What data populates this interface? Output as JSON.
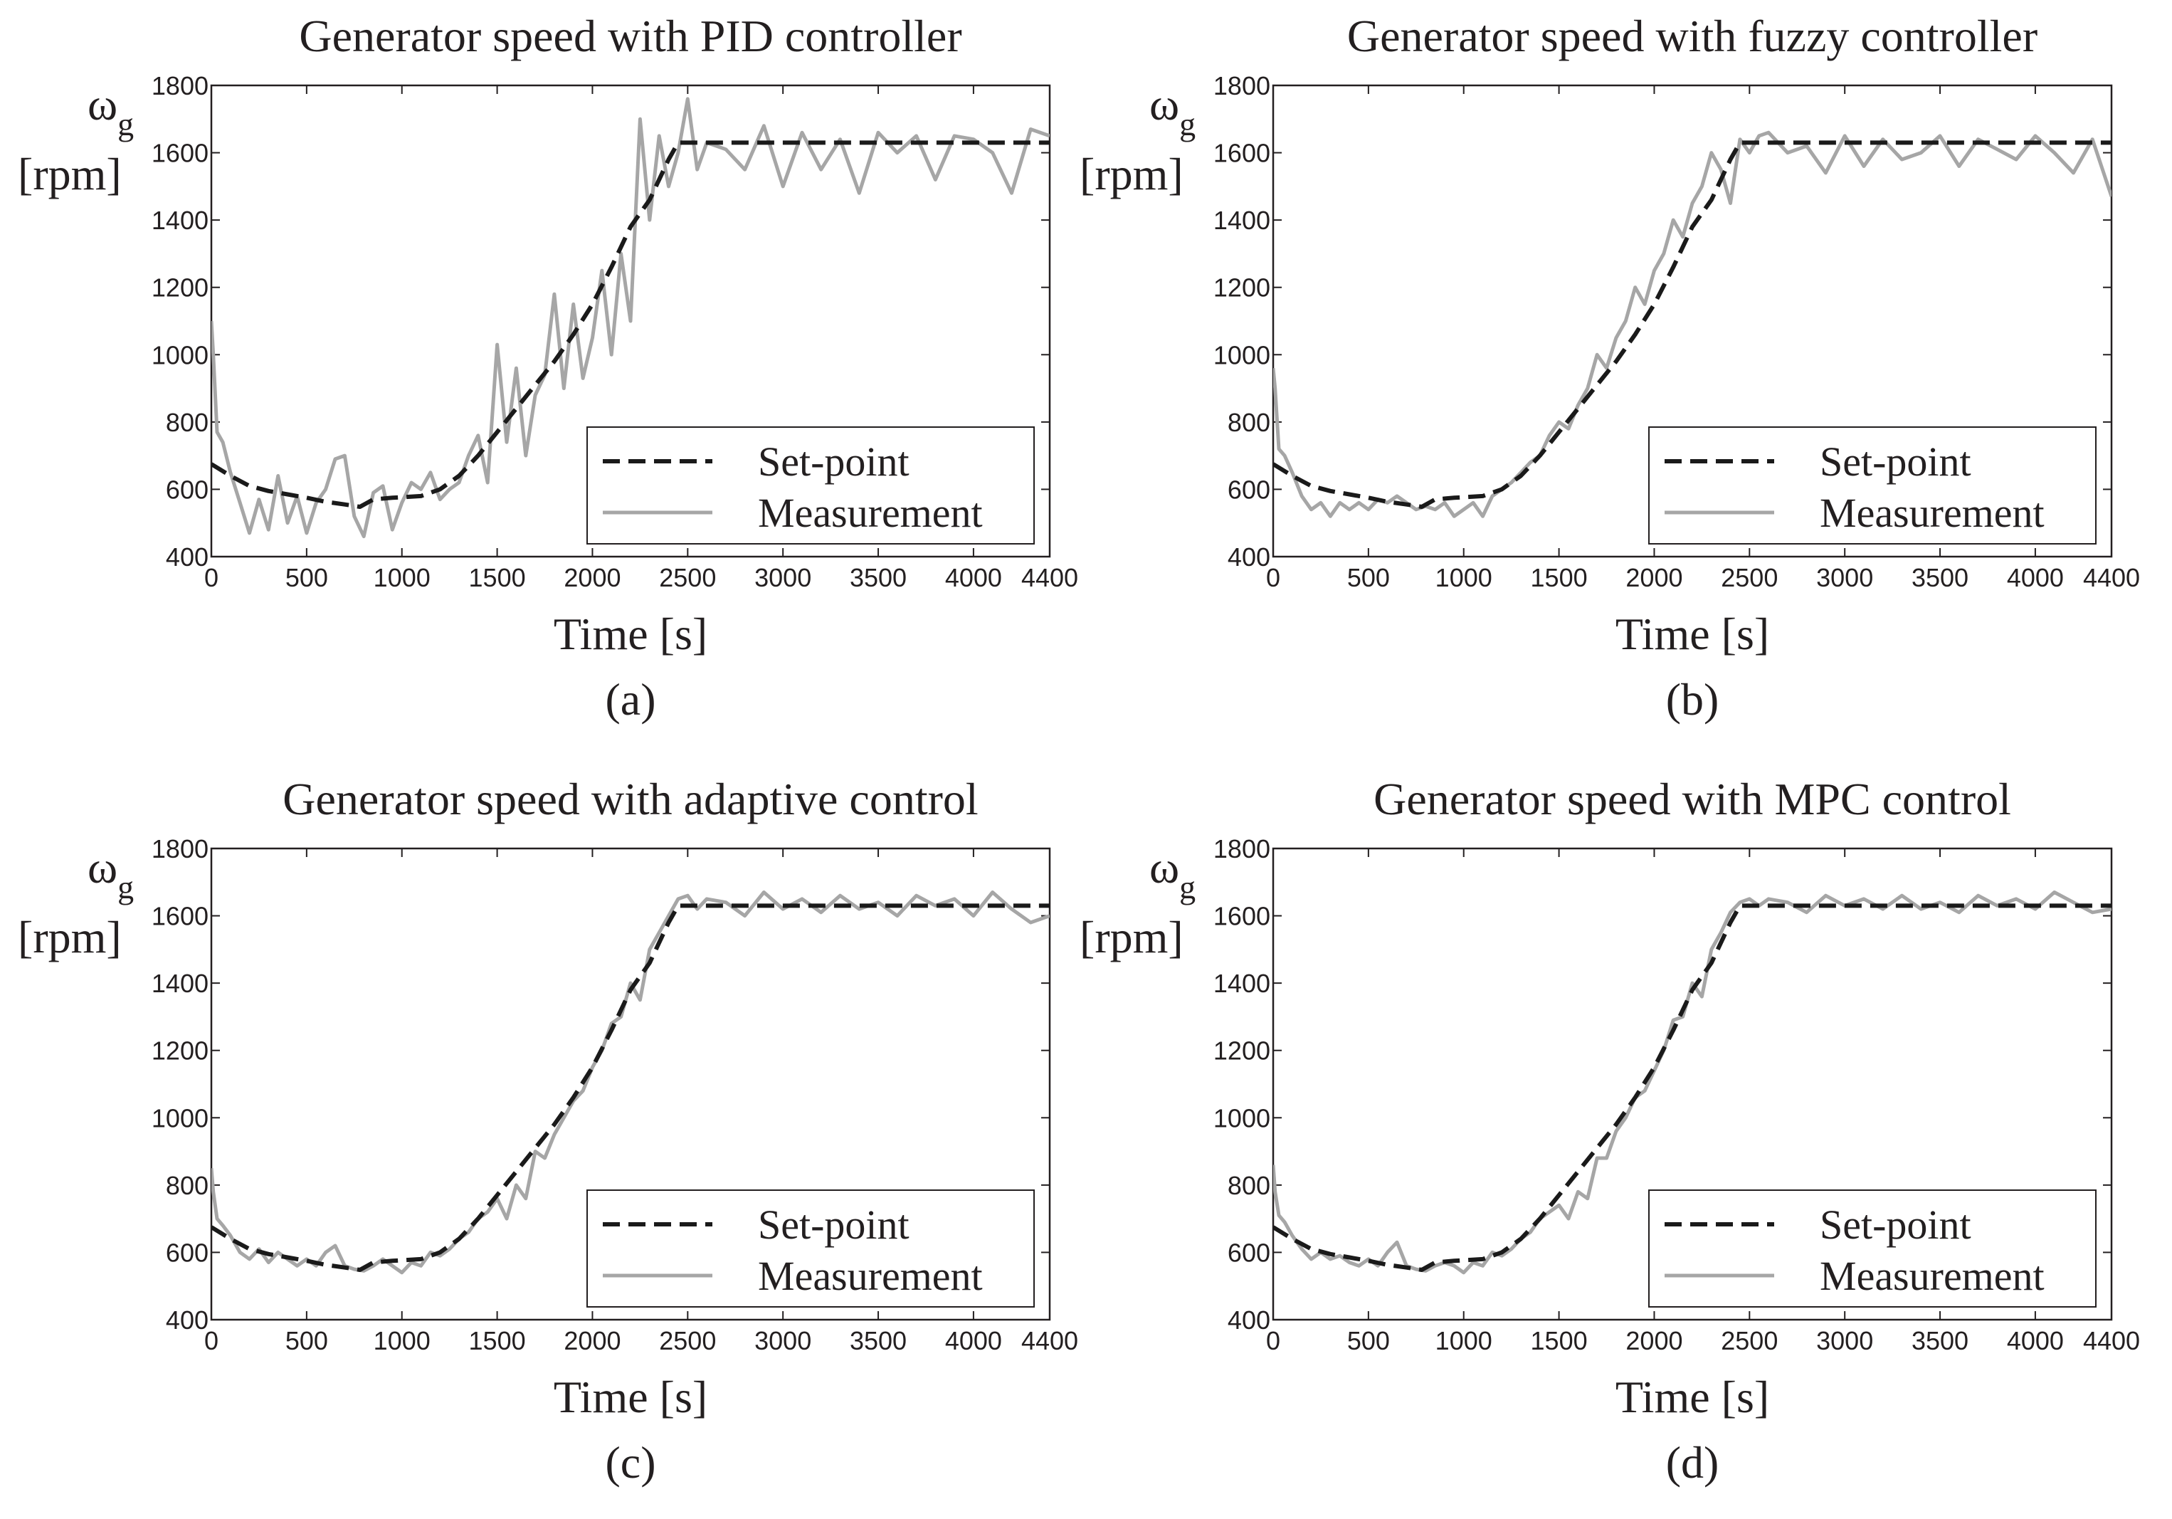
{
  "figure": {
    "style": {
      "setpoint_color": "#1a1a1a",
      "measurement_color": "#a6a6a6",
      "axis_color": "#231f20"
    },
    "shared": {
      "x_label": "Time [s]",
      "y_label_symbol": "ω",
      "y_label_subscript": "g",
      "y_label_unit": "[rpm]",
      "x_ticks": [
        "0",
        "500",
        "1000",
        "1500",
        "2000",
        "2500",
        "3000",
        "3500",
        "4000",
        "4400"
      ],
      "y_ticks": [
        "400",
        "600",
        "800",
        "1000",
        "1200",
        "1400",
        "1600",
        "1800"
      ],
      "legend_setpoint": "Set-point",
      "legend_measurement": "Measurement"
    }
  },
  "chart_data": [
    {
      "type": "line",
      "panel": "a",
      "caption": "(a)",
      "title": "Generator speed with PID controller",
      "xlabel": "Time [s]",
      "ylabel": "ωg [rpm]",
      "xlim": [
        0,
        4400
      ],
      "ylim": [
        400,
        1800
      ],
      "legend": [
        "Set-point",
        "Measurement"
      ],
      "series": [
        {
          "name": "Set-point",
          "style": "dashed",
          "x": [
            0,
            100,
            200,
            300,
            400,
            500,
            600,
            700,
            780,
            850,
            950,
            1100,
            1200,
            1300,
            1400,
            1500,
            1600,
            1700,
            1800,
            1900,
            2000,
            2100,
            2200,
            2300,
            2400,
            2450,
            4400
          ],
          "y": [
            675,
            640,
            610,
            595,
            585,
            575,
            563,
            555,
            548,
            570,
            575,
            580,
            600,
            640,
            700,
            770,
            840,
            910,
            980,
            1060,
            1150,
            1260,
            1380,
            1460,
            1580,
            1630,
            1630
          ]
        },
        {
          "name": "Measurement",
          "style": "solid",
          "x": [
            0,
            10,
            30,
            60,
            100,
            150,
            200,
            250,
            300,
            350,
            400,
            450,
            500,
            550,
            600,
            650,
            700,
            750,
            800,
            850,
            900,
            950,
            1000,
            1050,
            1100,
            1150,
            1200,
            1250,
            1300,
            1350,
            1400,
            1450,
            1500,
            1550,
            1600,
            1650,
            1700,
            1750,
            1800,
            1850,
            1900,
            1950,
            2000,
            2050,
            2100,
            2150,
            2200,
            2250,
            2300,
            2350,
            2400,
            2450,
            2500,
            2550,
            2600,
            2700,
            2800,
            2900,
            3000,
            3100,
            3200,
            3300,
            3400,
            3500,
            3600,
            3700,
            3800,
            3900,
            4000,
            4100,
            4200,
            4300,
            4400
          ],
          "y": [
            1100,
            1000,
            770,
            740,
            650,
            560,
            470,
            570,
            480,
            640,
            500,
            580,
            470,
            560,
            600,
            690,
            700,
            520,
            460,
            590,
            610,
            480,
            560,
            620,
            600,
            650,
            570,
            600,
            620,
            700,
            760,
            620,
            1030,
            740,
            960,
            700,
            880,
            940,
            1180,
            900,
            1150,
            930,
            1050,
            1250,
            1000,
            1300,
            1100,
            1700,
            1400,
            1650,
            1500,
            1600,
            1760,
            1550,
            1630,
            1610,
            1550,
            1680,
            1500,
            1660,
            1550,
            1640,
            1480,
            1660,
            1600,
            1650,
            1520,
            1650,
            1640,
            1600,
            1480,
            1670,
            1650
          ]
        }
      ]
    },
    {
      "type": "line",
      "panel": "b",
      "caption": "(b)",
      "title": "Generator speed with fuzzy controller",
      "xlabel": "Time [s]",
      "ylabel": "ωg [rpm]",
      "xlim": [
        0,
        4400
      ],
      "ylim": [
        400,
        1800
      ],
      "legend": [
        "Set-point",
        "Measurement"
      ],
      "series": [
        {
          "name": "Set-point",
          "style": "dashed",
          "x": [
            0,
            100,
            200,
            300,
            400,
            500,
            600,
            700,
            780,
            850,
            950,
            1100,
            1200,
            1300,
            1400,
            1500,
            1600,
            1700,
            1800,
            1900,
            2000,
            2100,
            2200,
            2300,
            2400,
            2450,
            4400
          ],
          "y": [
            675,
            640,
            610,
            595,
            585,
            575,
            563,
            555,
            548,
            570,
            575,
            580,
            600,
            640,
            700,
            770,
            840,
            910,
            980,
            1060,
            1150,
            1260,
            1380,
            1460,
            1580,
            1630,
            1630
          ]
        },
        {
          "name": "Measurement",
          "style": "solid",
          "x": [
            0,
            10,
            30,
            60,
            100,
            150,
            200,
            250,
            300,
            350,
            400,
            450,
            500,
            550,
            600,
            650,
            700,
            750,
            800,
            850,
            900,
            950,
            1000,
            1050,
            1100,
            1150,
            1200,
            1250,
            1300,
            1350,
            1400,
            1450,
            1500,
            1550,
            1600,
            1650,
            1700,
            1750,
            1800,
            1850,
            1900,
            1950,
            2000,
            2050,
            2100,
            2150,
            2200,
            2250,
            2300,
            2350,
            2400,
            2450,
            2500,
            2550,
            2600,
            2700,
            2800,
            2900,
            3000,
            3100,
            3200,
            3300,
            3400,
            3500,
            3600,
            3700,
            3800,
            3900,
            4000,
            4100,
            4200,
            4300,
            4400
          ],
          "y": [
            960,
            900,
            720,
            700,
            650,
            580,
            540,
            560,
            520,
            560,
            540,
            560,
            540,
            570,
            560,
            580,
            560,
            540,
            550,
            540,
            560,
            520,
            540,
            560,
            520,
            580,
            600,
            620,
            650,
            680,
            700,
            760,
            800,
            780,
            850,
            900,
            1000,
            960,
            1050,
            1100,
            1200,
            1150,
            1250,
            1300,
            1400,
            1350,
            1450,
            1500,
            1600,
            1550,
            1450,
            1640,
            1600,
            1650,
            1660,
            1600,
            1620,
            1540,
            1650,
            1560,
            1640,
            1580,
            1600,
            1650,
            1560,
            1640,
            1610,
            1580,
            1650,
            1600,
            1540,
            1640,
            1470
          ]
        }
      ]
    },
    {
      "type": "line",
      "panel": "c",
      "caption": "(c)",
      "title": "Generator speed with adaptive control",
      "xlabel": "Time [s]",
      "ylabel": "ωg [rpm]",
      "xlim": [
        0,
        4400
      ],
      "ylim": [
        400,
        1800
      ],
      "legend": [
        "Set-point",
        "Measurement"
      ],
      "series": [
        {
          "name": "Set-point",
          "style": "dashed",
          "x": [
            0,
            100,
            200,
            300,
            400,
            500,
            600,
            700,
            780,
            850,
            950,
            1100,
            1200,
            1300,
            1400,
            1500,
            1600,
            1700,
            1800,
            1900,
            2000,
            2100,
            2200,
            2300,
            2400,
            2450,
            4400
          ],
          "y": [
            675,
            640,
            610,
            595,
            585,
            575,
            563,
            555,
            548,
            570,
            575,
            580,
            600,
            640,
            700,
            770,
            840,
            910,
            980,
            1060,
            1150,
            1260,
            1380,
            1460,
            1580,
            1630,
            1630
          ]
        },
        {
          "name": "Measurement",
          "style": "solid",
          "x": [
            0,
            10,
            30,
            60,
            100,
            150,
            200,
            250,
            300,
            350,
            400,
            450,
            500,
            550,
            600,
            650,
            700,
            750,
            800,
            850,
            900,
            950,
            1000,
            1050,
            1100,
            1150,
            1200,
            1250,
            1300,
            1350,
            1400,
            1450,
            1500,
            1550,
            1600,
            1650,
            1700,
            1750,
            1800,
            1850,
            1900,
            1950,
            2000,
            2050,
            2100,
            2150,
            2200,
            2250,
            2300,
            2350,
            2400,
            2450,
            2500,
            2550,
            2600,
            2700,
            2800,
            2900,
            3000,
            3100,
            3200,
            3300,
            3400,
            3500,
            3600,
            3700,
            3800,
            3900,
            4000,
            4100,
            4200,
            4300,
            4400
          ],
          "y": [
            850,
            780,
            700,
            680,
            650,
            600,
            580,
            610,
            570,
            600,
            580,
            560,
            580,
            560,
            600,
            620,
            560,
            550,
            545,
            560,
            580,
            560,
            540,
            570,
            560,
            600,
            590,
            610,
            640,
            660,
            700,
            720,
            760,
            700,
            800,
            760,
            900,
            880,
            950,
            1000,
            1050,
            1080,
            1150,
            1200,
            1280,
            1300,
            1400,
            1350,
            1500,
            1550,
            1600,
            1650,
            1660,
            1620,
            1650,
            1640,
            1600,
            1670,
            1620,
            1650,
            1610,
            1660,
            1620,
            1640,
            1600,
            1660,
            1630,
            1650,
            1600,
            1670,
            1620,
            1580,
            1600
          ]
        }
      ]
    },
    {
      "type": "line",
      "panel": "d",
      "caption": "(d)",
      "title": "Generator speed with MPC control",
      "xlabel": "Time [s]",
      "ylabel": "ωg [rpm]",
      "xlim": [
        0,
        4400
      ],
      "ylim": [
        400,
        1800
      ],
      "legend": [
        "Set-point",
        "Measurement"
      ],
      "series": [
        {
          "name": "Set-point",
          "style": "dashed",
          "x": [
            0,
            100,
            200,
            300,
            400,
            500,
            600,
            700,
            780,
            850,
            950,
            1100,
            1200,
            1300,
            1400,
            1500,
            1600,
            1700,
            1800,
            1900,
            2000,
            2100,
            2200,
            2300,
            2400,
            2450,
            4400
          ],
          "y": [
            675,
            640,
            610,
            595,
            585,
            575,
            563,
            555,
            548,
            570,
            575,
            580,
            600,
            640,
            700,
            770,
            840,
            910,
            980,
            1060,
            1150,
            1260,
            1380,
            1460,
            1580,
            1630,
            1630
          ]
        },
        {
          "name": "Measurement",
          "style": "solid",
          "x": [
            0,
            10,
            30,
            60,
            100,
            150,
            200,
            250,
            300,
            350,
            400,
            450,
            500,
            550,
            600,
            650,
            700,
            750,
            800,
            850,
            900,
            950,
            1000,
            1050,
            1100,
            1150,
            1200,
            1250,
            1300,
            1350,
            1400,
            1450,
            1500,
            1550,
            1600,
            1650,
            1700,
            1750,
            1800,
            1850,
            1900,
            1950,
            2000,
            2050,
            2100,
            2150,
            2200,
            2250,
            2300,
            2350,
            2400,
            2450,
            2500,
            2550,
            2600,
            2700,
            2800,
            2900,
            3000,
            3100,
            3200,
            3300,
            3400,
            3500,
            3600,
            3700,
            3800,
            3900,
            4000,
            4100,
            4200,
            4300,
            4400
          ],
          "y": [
            860,
            780,
            710,
            690,
            650,
            610,
            580,
            600,
            580,
            590,
            570,
            560,
            580,
            560,
            600,
            630,
            560,
            550,
            545,
            560,
            570,
            560,
            540,
            570,
            560,
            600,
            590,
            610,
            640,
            660,
            700,
            720,
            740,
            700,
            780,
            760,
            880,
            880,
            960,
            1000,
            1060,
            1080,
            1140,
            1200,
            1290,
            1300,
            1400,
            1360,
            1500,
            1550,
            1610,
            1640,
            1650,
            1630,
            1650,
            1640,
            1610,
            1660,
            1630,
            1650,
            1620,
            1660,
            1620,
            1640,
            1610,
            1660,
            1630,
            1650,
            1620,
            1670,
            1640,
            1610,
            1620
          ]
        }
      ]
    }
  ]
}
